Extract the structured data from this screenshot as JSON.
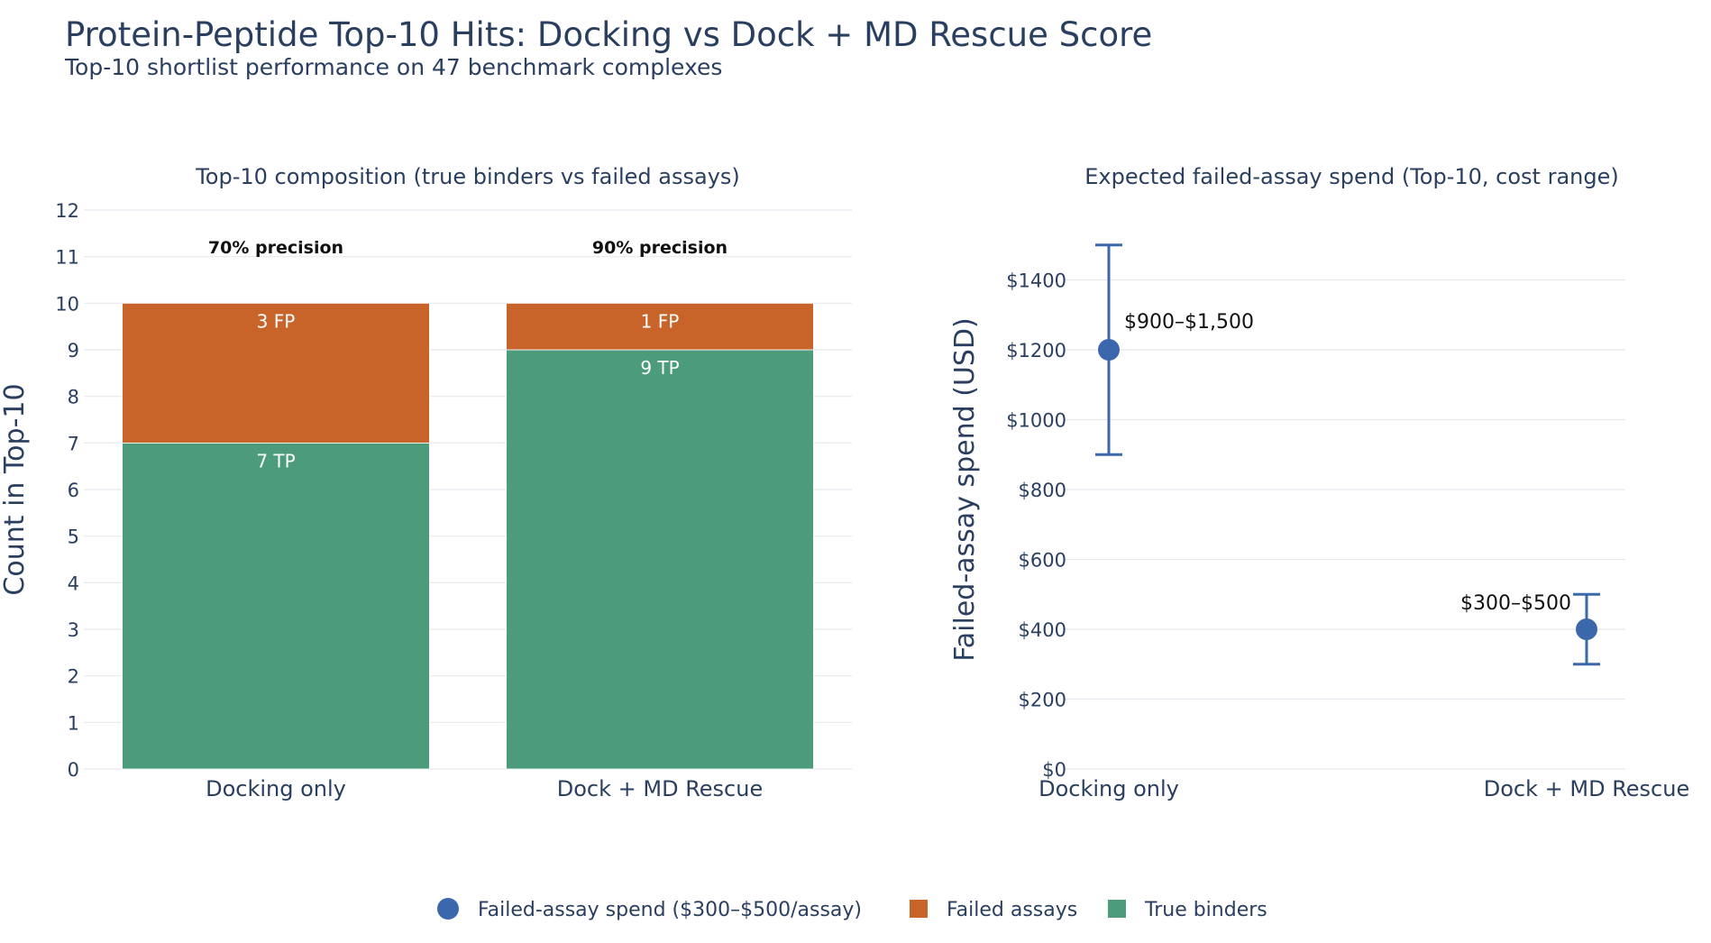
{
  "title": "Protein-Peptide Top-10 Hits: Docking vs Dock + MD Rescue Score",
  "subtitle": "Top-10 shortlist performance on 47 benchmark complexes",
  "colors": {
    "text": "#2a3f5f",
    "grid": "#e5e8ee",
    "tp": "#4c9c7c",
    "fp": "#c8642a",
    "spend": "#3b67ad",
    "annotation": "#111111",
    "bar_label": "#ffffff"
  },
  "chart_data": [
    {
      "type": "bar",
      "stacked": true,
      "title": "Top-10 composition (true binders vs failed assays)",
      "xlabel": "",
      "ylabel": "Count in Top-10",
      "ylim": [
        0,
        12
      ],
      "yticks": [
        "0",
        "1",
        "2",
        "3",
        "4",
        "5",
        "6",
        "7",
        "8",
        "9",
        "10",
        "11",
        "12"
      ],
      "categories": [
        "Docking only",
        "Dock + MD Rescue"
      ],
      "series": [
        {
          "name": "True binders",
          "color_key": "tp",
          "values": [
            7,
            9
          ],
          "labels": [
            "7 TP",
            "9 TP"
          ]
        },
        {
          "name": "Failed assays",
          "color_key": "fp",
          "values": [
            3,
            1
          ],
          "labels": [
            "3 FP",
            "1 FP"
          ]
        }
      ],
      "annotations": [
        "70% precision",
        "90% precision"
      ],
      "grid": true
    },
    {
      "type": "scatter",
      "error_bars": true,
      "title": "Expected failed-assay spend (Top-10, cost range)",
      "xlabel": "",
      "ylabel": "Failed-assay spend (USD)",
      "ylim": [
        0,
        1600
      ],
      "yticks": [
        0,
        200,
        400,
        600,
        800,
        1000,
        1200,
        1400
      ],
      "ytick_labels": [
        "$0",
        "$200",
        "$400",
        "$600",
        "$800",
        "$1000",
        "$1200",
        "$1400"
      ],
      "categories": [
        "Docking only",
        "Dock + MD Rescue"
      ],
      "series": [
        {
          "name": "Failed-assay spend ($300–$500/assay)",
          "color_key": "spend",
          "values": [
            1200,
            400
          ],
          "low": [
            900,
            300
          ],
          "high": [
            1500,
            500
          ],
          "labels": [
            "$900–$1,500",
            "$300–$500"
          ]
        }
      ],
      "grid": true
    }
  ],
  "legend": {
    "placement": "bottom-center",
    "items": [
      {
        "label": "Failed-assay spend ($300–$500/assay)",
        "marker": "circle",
        "color_key": "spend"
      },
      {
        "label": "Failed assays",
        "marker": "square",
        "color_key": "fp"
      },
      {
        "label": "True binders",
        "marker": "square",
        "color_key": "tp"
      }
    ]
  }
}
